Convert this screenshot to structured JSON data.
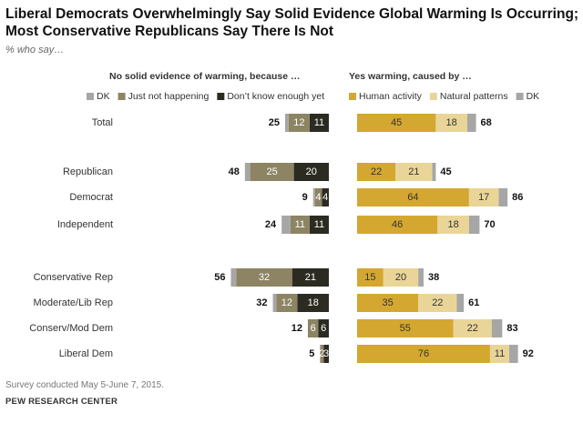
{
  "title_line1": "Liberal Democrats Overwhelmingly Say Solid Evidence Global Warming Is Occurring;",
  "title_line2": "Most Conservative Republicans Say There Is Not",
  "subtitle": "% who say…",
  "footnote": "Survey conducted May 5-June 7, 2015.",
  "source": "PEW RESEARCH CENTER",
  "colors": {
    "dk": "#a6a6a6",
    "just_not_happening": "#8c8463",
    "dont_know_enough": "#2b2b22",
    "human_activity": "#d4a730",
    "natural_patterns": "#e9d597"
  },
  "chart_data": {
    "type": "bar",
    "orientation": "horizontal",
    "stacked": "diverging",
    "left_panel": {
      "header": "No solid evidence of warming, because …",
      "series": [
        {
          "name": "DK",
          "color_key": "dk",
          "values": [
            2,
            3,
            1,
            5,
            3,
            2,
            0,
            0
          ]
        },
        {
          "name": "Just not happening",
          "color_key": "just_not_happening",
          "values": [
            12,
            25,
            4,
            11,
            32,
            12,
            6,
            2
          ]
        },
        {
          "name": "Don’t know enough yet",
          "color_key": "dont_know_enough",
          "values": [
            11,
            20,
            4,
            11,
            21,
            18,
            6,
            3
          ]
        }
      ],
      "totals": [
        25,
        48,
        9,
        24,
        56,
        32,
        12,
        5
      ],
      "value_labels": [
        [
          "",
          "12",
          "11"
        ],
        [
          "",
          "25",
          "20"
        ],
        [
          "",
          "4",
          "4"
        ],
        [
          "",
          "11",
          "11"
        ],
        [
          "",
          "32",
          "21"
        ],
        [
          "",
          "12",
          "18"
        ],
        [
          "",
          "6",
          "6"
        ],
        [
          "",
          "2",
          "3"
        ]
      ]
    },
    "right_panel": {
      "header": "Yes warming, caused by …",
      "series": [
        {
          "name": "Human activity",
          "color_key": "human_activity",
          "values": [
            45,
            22,
            64,
            46,
            15,
            35,
            55,
            76
          ]
        },
        {
          "name": "Natural patterns",
          "color_key": "natural_patterns",
          "values": [
            18,
            21,
            17,
            18,
            20,
            22,
            22,
            11
          ]
        },
        {
          "name": "DK",
          "color_key": "dk",
          "values": [
            5,
            2,
            5,
            6,
            3,
            4,
            6,
            5
          ]
        }
      ],
      "totals": [
        68,
        45,
        86,
        70,
        38,
        61,
        83,
        92
      ]
    },
    "categories": [
      "Total",
      "Republican",
      "Democrat",
      "Independent",
      "Conservative Rep",
      "Moderate/Lib Rep",
      "Conserv/Mod Dem",
      "Liberal Dem"
    ],
    "xlabel": "",
    "ylabel": "",
    "grid": false,
    "legend": "top"
  }
}
